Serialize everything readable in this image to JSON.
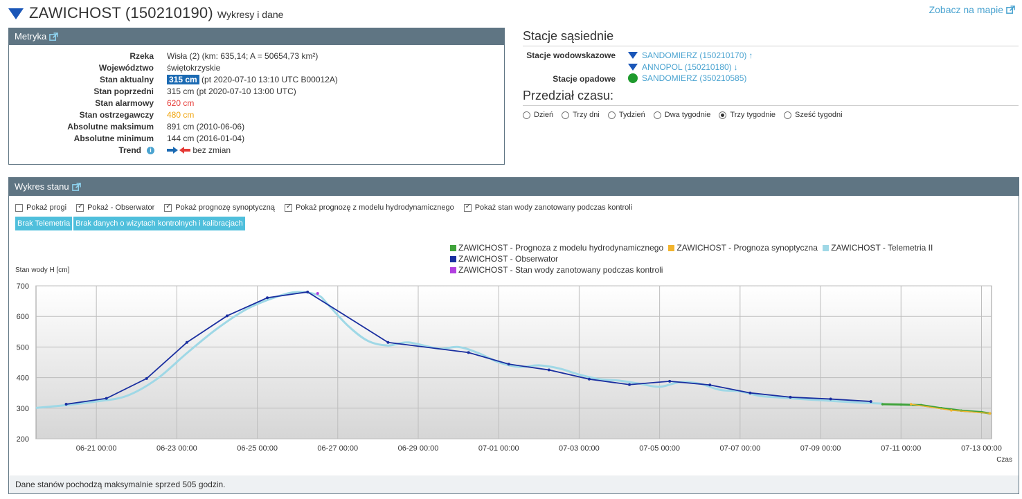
{
  "header": {
    "station_name": "ZAWICHOST (150210190)",
    "subtitle": "Wykresy i dane",
    "map_link": "Zobacz na mapie"
  },
  "metryka": {
    "title": "Metryka",
    "rows": [
      {
        "label": "Rzeka",
        "value": "Wisła (2) (km: 635,14; A = 50654,73 km²)"
      },
      {
        "label": "Województwo",
        "value": "świętokrzyskie"
      },
      {
        "label": "Stan aktualny",
        "value_highlight": "315 cm",
        "value": "(pt 2020-07-10 13:10 UTC B00012A)"
      },
      {
        "label": "Stan poprzedni",
        "value": "315 cm (pt 2020-07-10 13:00 UTC)"
      },
      {
        "label": "Stan alarmowy",
        "value": "620 cm"
      },
      {
        "label": "Stan ostrzegawczy",
        "value": "480 cm"
      },
      {
        "label": "Absolutne maksimum",
        "value": "891 cm (2010-06-06)"
      },
      {
        "label": "Absolutne minimum",
        "value": "144 cm (2016-01-04)"
      },
      {
        "label": "Trend",
        "value": "bez zmian"
      }
    ]
  },
  "neighbors": {
    "title": "Stacje sąsiednie",
    "water_label": "Stacje wodowskazowe",
    "water_stations": [
      {
        "name": "SANDOMIERZ (150210170)",
        "arrow": "↑"
      },
      {
        "name": "ANNOPOL (150210180)",
        "arrow": "↓"
      }
    ],
    "rain_label": "Stacje opadowe",
    "rain_station": "SANDOMIERZ (350210585)"
  },
  "time_range": {
    "title": "Przedział czasu:",
    "options": [
      "Dzień",
      "Trzy dni",
      "Tydzień",
      "Dwa tygodnie",
      "Trzy tygodnie",
      "Sześć tygodni"
    ],
    "selected": "Trzy tygodnie"
  },
  "chart_panel": {
    "title": "Wykres stanu",
    "options": [
      {
        "label": "Pokaż progi",
        "checked": false
      },
      {
        "label": "Pokaż - Obserwator",
        "checked": true
      },
      {
        "label": "Pokaż prognozę synoptyczną",
        "checked": true
      },
      {
        "label": "Pokaż prognozę z modelu hydrodynamicznego",
        "checked": true
      },
      {
        "label": "Pokaż stan wody zanotowany podczas kontroli",
        "checked": true
      }
    ],
    "badges": [
      "Brak Telemetria",
      "Brak danych o wizytach kontrolnych i kalibracjach"
    ],
    "footer": "Dane stanów pochodzą maksymalnie sprzed 505 godzin."
  },
  "chart_data": {
    "type": "line",
    "ylabel": "Stan wody H [cm]",
    "xlabel": "Czas",
    "ylim": [
      200,
      700
    ],
    "yticks": [
      200,
      300,
      400,
      500,
      600,
      700
    ],
    "xlim": [
      "2020-06-19T12:00",
      "2020-07-13T06:00"
    ],
    "xtick_labels": [
      "06-21 00:00",
      "06-23 00:00",
      "06-25 00:00",
      "06-27 00:00",
      "06-29 00:00",
      "07-01 00:00",
      "07-03 00:00",
      "07-05 00:00",
      "07-07 00:00",
      "07-09 00:00",
      "07-11 00:00",
      "07-13 00:00"
    ],
    "xtick_values": [
      "2020-06-21T00:00",
      "2020-06-23T00:00",
      "2020-06-25T00:00",
      "2020-06-27T00:00",
      "2020-06-29T00:00",
      "2020-07-01T00:00",
      "2020-07-03T00:00",
      "2020-07-05T00:00",
      "2020-07-07T00:00",
      "2020-07-09T00:00",
      "2020-07-11T00:00",
      "2020-07-13T00:00"
    ],
    "grid": true,
    "legend_position": "top-right",
    "series": [
      {
        "name": "ZAWICHOST - Prognoza z modelu hydrodynamicznego",
        "color": "#3fa33a",
        "x": [
          "2020-07-10T13:00",
          "2020-07-11T00:00",
          "2020-07-11T12:00",
          "2020-07-12T00:00",
          "2020-07-12T12:00",
          "2020-07-13T00:00",
          "2020-07-13T05:00"
        ],
        "values": [
          313,
          312,
          310,
          300,
          292,
          287,
          283
        ]
      },
      {
        "name": "ZAWICHOST - Prognoza synoptyczna",
        "color": "#f2b42e",
        "x": [
          "2020-07-11T06:00",
          "2020-07-12T06:00",
          "2020-07-13T05:00"
        ],
        "values": [
          313,
          293,
          283
        ]
      },
      {
        "name": "ZAWICHOST - Telemetria II",
        "color": "#9fd8e6",
        "x": [
          "2020-06-19T12:00",
          "2020-06-20T06:00",
          "2020-06-21T00:00",
          "2020-06-21T18:00",
          "2020-06-22T12:00",
          "2020-06-23T06:00",
          "2020-06-24T00:00",
          "2020-06-24T18:00",
          "2020-06-25T12:00",
          "2020-06-26T00:00",
          "2020-06-26T12:00",
          "2020-06-26T18:00",
          "2020-06-27T06:00",
          "2020-06-27T18:00",
          "2020-06-28T06:00",
          "2020-06-28T18:00",
          "2020-06-29T12:00",
          "2020-06-30T00:00",
          "2020-06-30T12:00",
          "2020-07-01T00:00",
          "2020-07-01T12:00",
          "2020-07-02T00:00",
          "2020-07-02T12:00",
          "2020-07-03T00:00",
          "2020-07-03T12:00",
          "2020-07-04T00:00",
          "2020-07-04T12:00",
          "2020-07-05T00:00",
          "2020-07-05T12:00",
          "2020-07-06T00:00",
          "2020-07-06T12:00",
          "2020-07-07T00:00",
          "2020-07-07T12:00",
          "2020-07-08T00:00",
          "2020-07-08T12:00",
          "2020-07-09T00:00",
          "2020-07-09T12:00",
          "2020-07-10T00:00",
          "2020-07-10T13:00"
        ],
        "values": [
          301,
          310,
          322,
          340,
          395,
          480,
          560,
          625,
          665,
          680,
          670,
          640,
          570,
          520,
          505,
          515,
          495,
          500,
          480,
          450,
          435,
          440,
          430,
          410,
          395,
          390,
          380,
          370,
          385,
          380,
          360,
          355,
          340,
          335,
          330,
          326,
          322,
          318,
          315
        ]
      },
      {
        "name": "ZAWICHOST - Obserwator",
        "color": "#1a2fa0",
        "x": [
          "2020-06-20T06:00",
          "2020-06-21T06:00",
          "2020-06-22T06:00",
          "2020-06-23T06:00",
          "2020-06-24T06:00",
          "2020-06-25T06:00",
          "2020-06-26T06:00",
          "2020-06-28T06:00",
          "2020-06-30T06:00",
          "2020-07-01T06:00",
          "2020-07-02T06:00",
          "2020-07-03T06:00",
          "2020-07-04T06:00",
          "2020-07-05T06:00",
          "2020-07-06T06:00",
          "2020-07-07T06:00",
          "2020-07-08T06:00",
          "2020-07-09T06:00",
          "2020-07-10T06:00"
        ],
        "values": [
          313,
          332,
          397,
          515,
          602,
          661,
          680,
          515,
          482,
          444,
          425,
          395,
          377,
          388,
          376,
          350,
          336,
          330,
          322
        ]
      },
      {
        "name": "ZAWICHOST - Stan wody zanotowany podczas kontroli",
        "color": "#b23fe0",
        "x": [
          "2020-06-26T12:00"
        ],
        "values": [
          675
        ]
      }
    ]
  }
}
